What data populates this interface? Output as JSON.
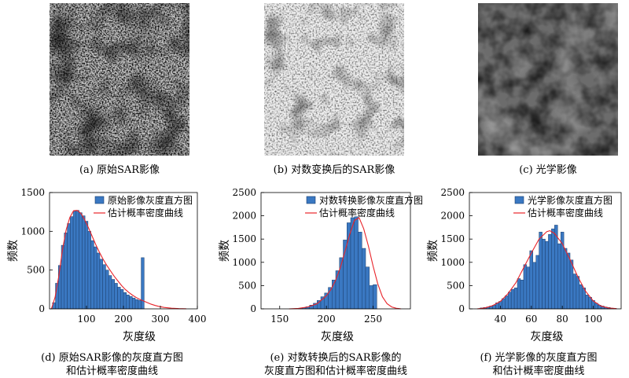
{
  "panels": {
    "a": {
      "caption": "(a) 原始SAR影像",
      "tone": "dark-speckle"
    },
    "b": {
      "caption": "(b) 对数变换后的SAR影像",
      "tone": "light-speckle"
    },
    "c": {
      "caption": "(c) 光学影像",
      "tone": "smooth-gray"
    }
  },
  "chart_captions": {
    "d": [
      "(d) 原始SAR影像的灰度直方图",
      "和估计概率密度曲线"
    ],
    "e": [
      "(e) 对数转换后的SAR影像的",
      "灰度直方图和估计概率密度曲线"
    ],
    "f": [
      "(f) 光学影像的灰度直方图",
      "和估计概率密度曲线"
    ]
  },
  "colors": {
    "bar": "#3a78c2",
    "bar_edge": "#1c3f6e",
    "curve": "#e8242a"
  },
  "chart_data": [
    {
      "id": "d",
      "type": "bar",
      "xlabel": "灰度级",
      "ylabel": "频数",
      "xlim": [
        0,
        400
      ],
      "ylim": [
        0,
        1500
      ],
      "xticks": [
        100,
        200,
        300,
        400
      ],
      "yticks": [
        0,
        500,
        1000,
        1500
      ],
      "legend": "top-right",
      "series": [
        {
          "name": "原始影像灰度直方图",
          "kind": "hist",
          "bin_width": 8,
          "x": [
            12,
            20,
            28,
            36,
            44,
            52,
            60,
            68,
            76,
            84,
            92,
            100,
            108,
            116,
            124,
            132,
            140,
            148,
            156,
            164,
            172,
            180,
            188,
            196,
            204,
            212,
            220,
            228,
            236,
            244,
            252
          ],
          "values": [
            80,
            330,
            560,
            820,
            980,
            1100,
            1190,
            1260,
            1270,
            1240,
            1200,
            1130,
            1000,
            880,
            800,
            720,
            640,
            570,
            500,
            430,
            380,
            330,
            280,
            250,
            210,
            180,
            160,
            140,
            120,
            110,
            660
          ]
        },
        {
          "name": "估计概率密度曲线",
          "kind": "curve",
          "x": [
            5,
            15,
            25,
            35,
            45,
            55,
            65,
            75,
            85,
            95,
            105,
            115,
            125,
            135,
            145,
            155,
            165,
            175,
            185,
            195,
            205,
            215,
            225,
            235,
            245,
            255,
            265,
            275,
            285,
            295,
            310,
            330,
            350,
            370
          ],
          "values": [
            0,
            150,
            420,
            760,
            1020,
            1180,
            1265,
            1270,
            1230,
            1150,
            1050,
            940,
            830,
            730,
            640,
            560,
            490,
            420,
            360,
            300,
            250,
            210,
            175,
            145,
            120,
            100,
            80,
            60,
            45,
            32,
            18,
            8,
            3,
            1
          ]
        }
      ]
    },
    {
      "id": "e",
      "type": "bar",
      "xlabel": "灰度级",
      "ylabel": "频数",
      "xlim": [
        130,
        290
      ],
      "ylim": [
        0,
        2500
      ],
      "xticks": [
        150,
        200,
        250
      ],
      "yticks": [
        0,
        500,
        1000,
        1500,
        2000,
        2500
      ],
      "legend": "top-right",
      "series": [
        {
          "name": "对数转换影像灰度直方图",
          "kind": "hist",
          "bin_width": 4,
          "x": [
            172,
            176,
            180,
            184,
            188,
            192,
            196,
            200,
            204,
            208,
            212,
            216,
            220,
            224,
            228,
            232,
            236,
            240,
            244,
            248,
            252
          ],
          "values": [
            10,
            25,
            45,
            80,
            120,
            180,
            260,
            340,
            460,
            620,
            820,
            1100,
            1480,
            1850,
            1960,
            1980,
            1650,
            1300,
            900,
            500,
            520
          ]
        },
        {
          "name": "估计概率密度曲线",
          "kind": "curve",
          "x": [
            160,
            170,
            180,
            190,
            200,
            205,
            210,
            215,
            220,
            225,
            230,
            235,
            240,
            245,
            250,
            255,
            260,
            265,
            270,
            275,
            280
          ],
          "values": [
            0,
            10,
            40,
            110,
            280,
            420,
            620,
            890,
            1240,
            1600,
            1900,
            1960,
            1720,
            1350,
            920,
            540,
            260,
            110,
            40,
            12,
            0
          ]
        }
      ]
    },
    {
      "id": "f",
      "type": "bar",
      "xlabel": "灰度级",
      "ylabel": "频数",
      "xlim": [
        20,
        118
      ],
      "ylim": [
        0,
        2500
      ],
      "xticks": [
        40,
        60,
        80,
        100
      ],
      "yticks": [
        0,
        500,
        1000,
        1500,
        2000,
        2500
      ],
      "legend": "top-right",
      "series": [
        {
          "name": "光学影像灰度直方图",
          "kind": "hist",
          "bin_width": 2,
          "x": [
            28,
            30,
            32,
            34,
            36,
            38,
            40,
            42,
            44,
            46,
            48,
            50,
            52,
            54,
            56,
            58,
            60,
            62,
            64,
            66,
            68,
            70,
            72,
            74,
            76,
            78,
            80,
            82,
            84,
            86,
            88,
            90,
            92,
            94,
            96,
            98,
            100,
            102,
            104,
            106,
            108,
            110,
            112,
            114
          ],
          "values": [
            20,
            30,
            40,
            60,
            80,
            130,
            160,
            220,
            280,
            360,
            420,
            450,
            650,
            620,
            950,
            900,
            1250,
            1000,
            1150,
            1650,
            1500,
            1450,
            1600,
            1720,
            1800,
            1400,
            1650,
            1300,
            1200,
            1050,
            750,
            700,
            520,
            450,
            300,
            250,
            180,
            120,
            80,
            60,
            40,
            30,
            15,
            8
          ]
        },
        {
          "name": "估计概率密度曲线",
          "kind": "curve",
          "x": [
            25,
            30,
            35,
            40,
            45,
            50,
            55,
            60,
            65,
            70,
            72,
            75,
            80,
            85,
            90,
            95,
            100,
            105,
            110,
            115
          ],
          "values": [
            0,
            20,
            70,
            160,
            330,
            560,
            880,
            1200,
            1500,
            1660,
            1680,
            1620,
            1400,
            1060,
            690,
            380,
            170,
            60,
            18,
            5
          ]
        }
      ]
    }
  ]
}
